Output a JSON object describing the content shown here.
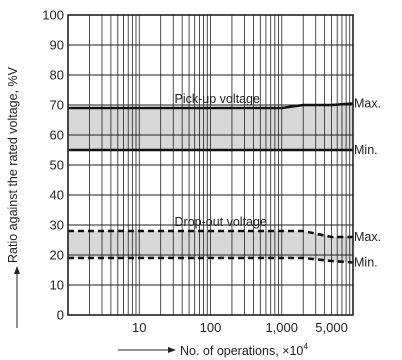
{
  "chart_data": {
    "type": "area",
    "xlabel": "No. of operations, ×10",
    "xlabel_exponent": "4",
    "ylabel": "Ratio against the rated voltage, %V",
    "xscale": "log",
    "xlim": [
      1,
      10000
    ],
    "ylim": [
      0,
      100
    ],
    "x_ticks": [
      10,
      100,
      1000,
      5000
    ],
    "x_tick_labels": [
      "10",
      "100",
      "1,000",
      "5,000"
    ],
    "y_ticks": [
      0,
      10,
      20,
      30,
      40,
      50,
      60,
      70,
      80,
      90,
      100
    ],
    "y_tick_labels": [
      "0",
      "10",
      "20",
      "30",
      "40",
      "50",
      "60",
      "70",
      "80",
      "90",
      "100"
    ],
    "grid": true,
    "bands": [
      {
        "name": "Pick-up voltage",
        "x": [
          1,
          1000,
          2000,
          5000,
          10000
        ],
        "max": [
          69,
          69,
          70,
          70,
          70.5
        ],
        "min": [
          55,
          55,
          55,
          55,
          55
        ],
        "max_label": "Max.",
        "min_label": "Min.",
        "line_style": "solid",
        "fill": "#d8d8d8"
      },
      {
        "name": "Drop-out voltage",
        "x": [
          1,
          1000,
          2000,
          5000,
          10000
        ],
        "max": [
          28,
          28,
          28,
          26,
          26
        ],
        "min": [
          19,
          19,
          19,
          18,
          17.5
        ],
        "max_label": "Max.",
        "min_label": "Min.",
        "line_style": "dashed",
        "fill": "#d8d8d8"
      }
    ]
  }
}
